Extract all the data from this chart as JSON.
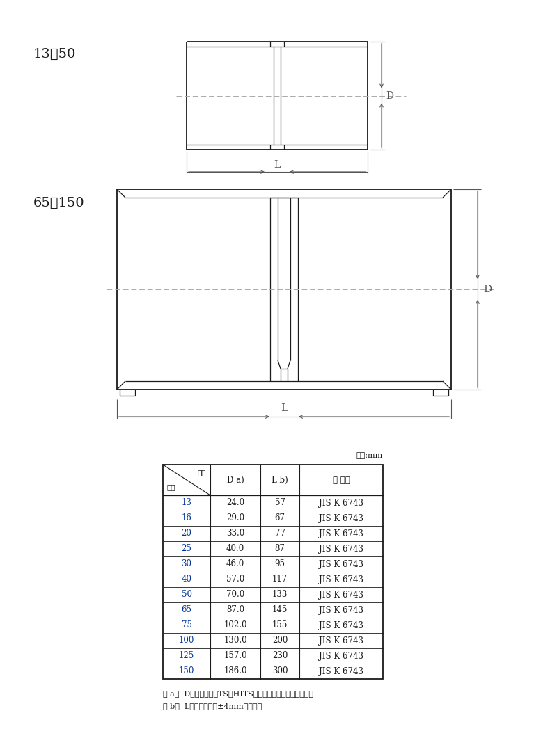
{
  "bg_color": "#ffffff",
  "line_color": "#1a1a1a",
  "dim_color": "#555555",
  "center_line_color": "#aaaaaa",
  "blue_text": "#003399",
  "label_13_50": "13～50",
  "label_65_150": "65～150",
  "unit_label": "単位:mm",
  "note_a": "注 a）  Dの許容差は、TS・HITS継手受口共通寸法図による。",
  "note_b": "注 b）  Lの許容差は、±4mmとする。",
  "header_kigo": "記号",
  "header_kobei": "呼径",
  "header_D": "D a)",
  "header_L": "L b)",
  "header_kikaku": "規 　格",
  "col0": [
    "13",
    "16",
    "20",
    "25",
    "30",
    "40",
    "50",
    "65",
    "75",
    "100",
    "125",
    "150"
  ],
  "col1": [
    "24.0",
    "29.0",
    "33.0",
    "40.0",
    "46.0",
    "57.0",
    "70.0",
    "87.0",
    "102.0",
    "130.0",
    "157.0",
    "186.0"
  ],
  "col2": [
    "57",
    "67",
    "77",
    "87",
    "95",
    "117",
    "133",
    "145",
    "155",
    "200",
    "230",
    "300"
  ],
  "col3": [
    "JIS K 6743",
    "JIS K 6743",
    "JIS K 6743",
    "JIS K 6743",
    "JIS K 6743",
    "JIS K 6743",
    "JIS K 6743",
    "JIS K 6743",
    "JIS K 6743",
    "JIS K 6743",
    "JIS K 6743",
    "JIS K 6743"
  ]
}
